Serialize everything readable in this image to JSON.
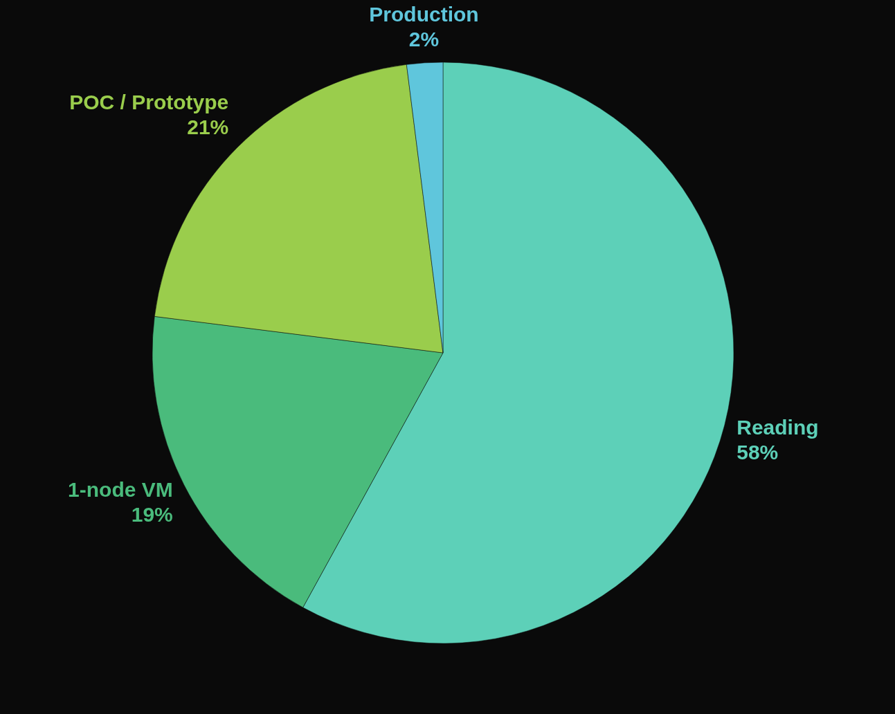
{
  "chart_data": {
    "type": "pie",
    "categories": [
      "Reading",
      "1-node VM",
      "POC / Prototype",
      "Production"
    ],
    "values": [
      58,
      19,
      21,
      2
    ],
    "value_labels": [
      "58%",
      "19%",
      "21%",
      "2%"
    ],
    "colors": [
      "#5dd0b8",
      "#4abb7c",
      "#9acd4c",
      "#5fc6dc"
    ]
  }
}
